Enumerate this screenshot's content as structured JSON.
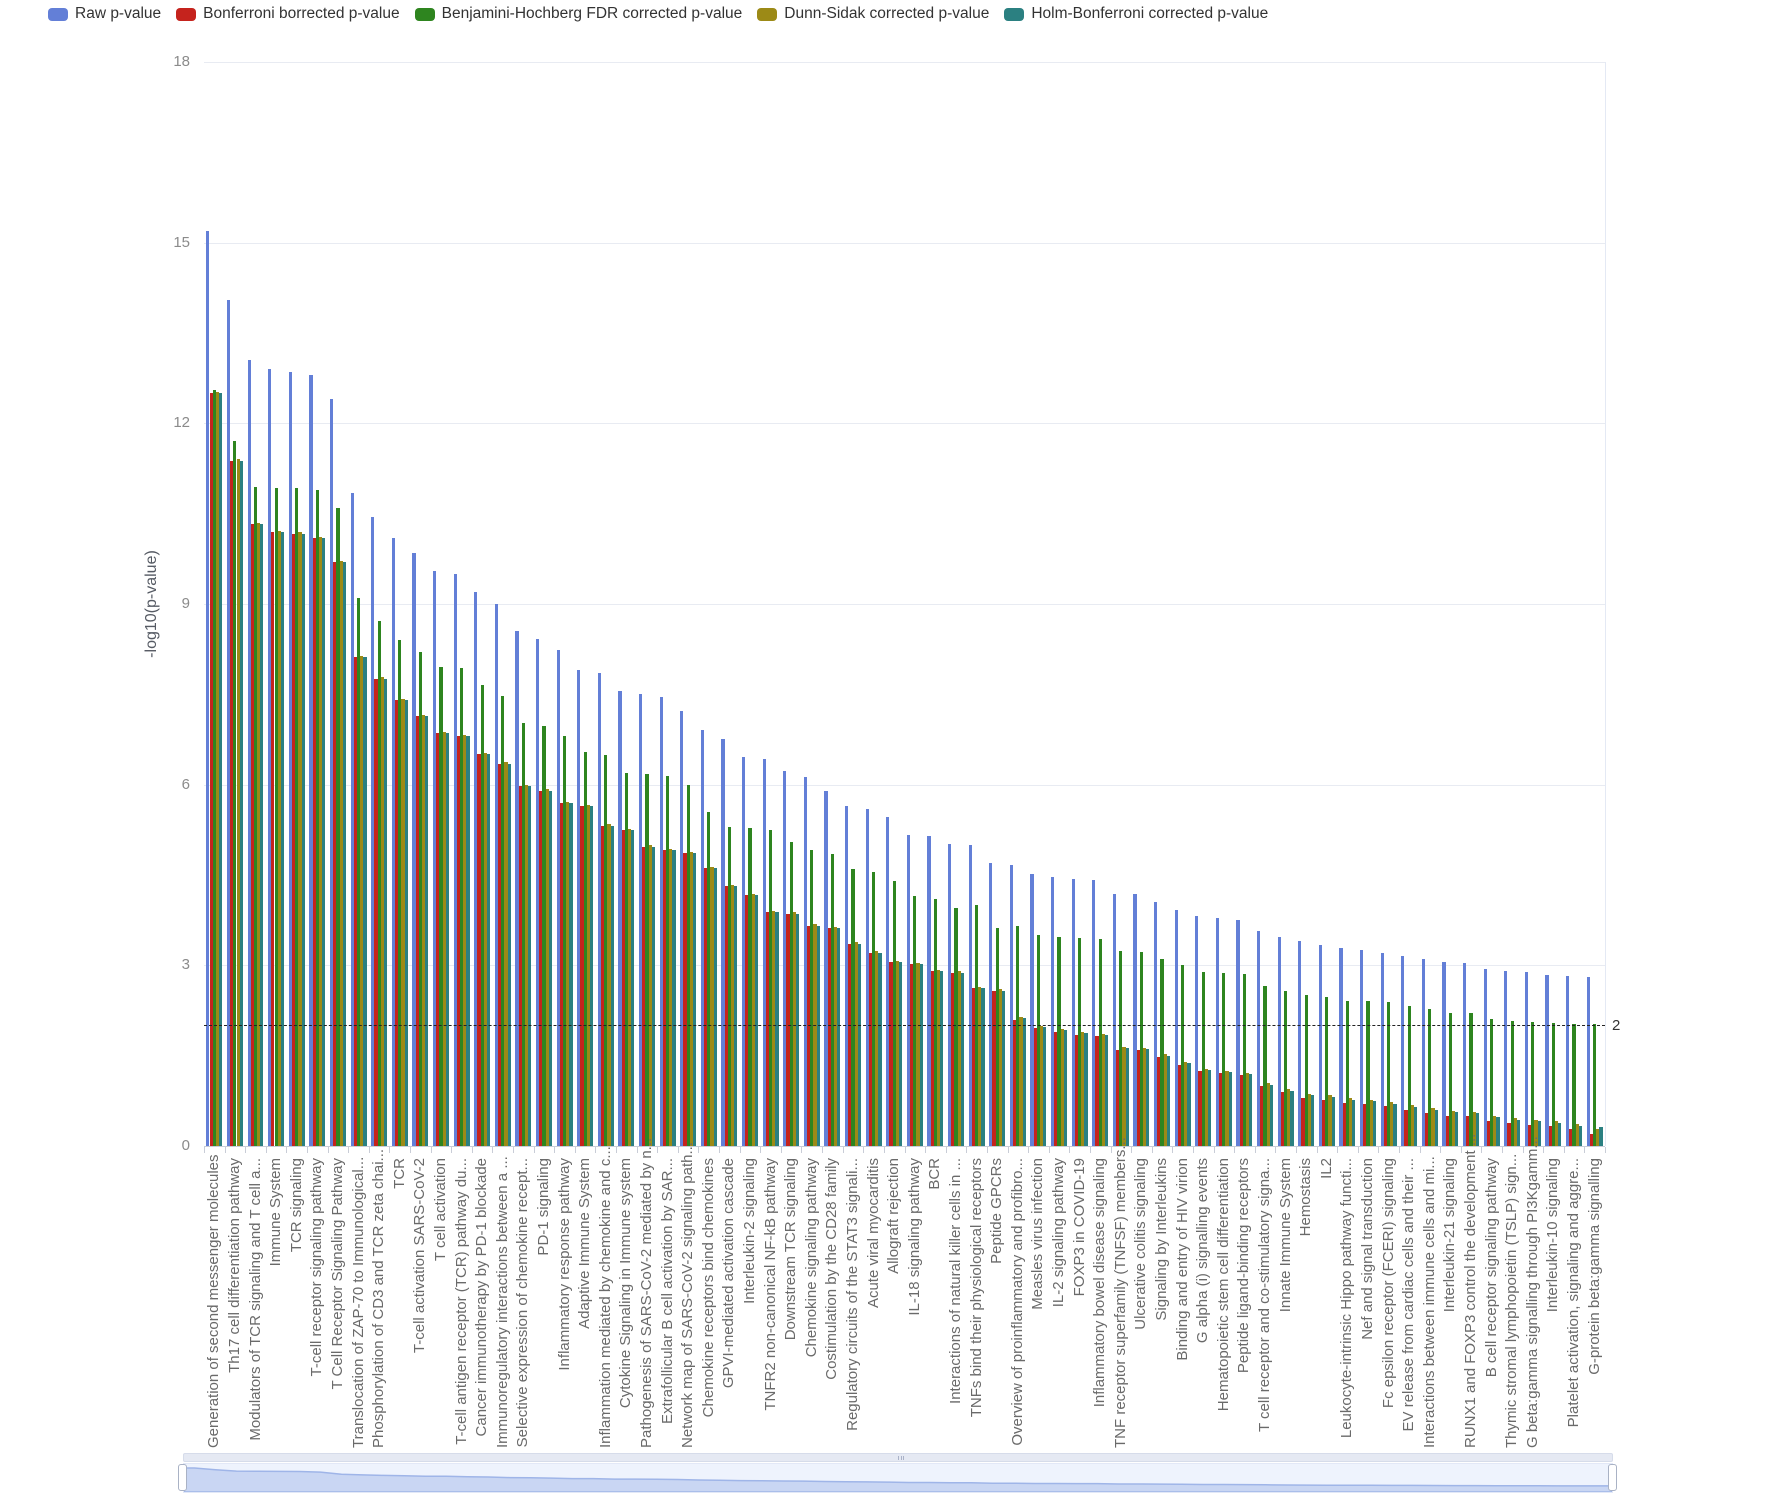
{
  "y_axis": {
    "title": "-log10(p-value)",
    "ticks": [
      0,
      3,
      6,
      9,
      12,
      15,
      18
    ],
    "max": 18
  },
  "threshold": {
    "value": 2,
    "label": "2"
  },
  "chart_data": {
    "type": "bar",
    "title": "",
    "xlabel": "",
    "ylabel": "-log10(p-value)",
    "ylim": [
      0,
      18
    ],
    "grid": true,
    "legend_position": "top",
    "threshold_line": 2,
    "categories": [
      "Generation of second messenger molecules",
      "Th17 cell differentiation pathway",
      "Modulators of TCR signaling and T cell a...",
      "Immune System",
      "TCR signaling",
      "T-cell receptor signaling pathway",
      "T Cell Receptor Signaling Pathway",
      "Translocation of ZAP-70 to Immunological...",
      "Phosphorylation of CD3 and TCR zeta chai...",
      "TCR",
      "T-cell activation SARS-CoV-2",
      "T cell activation",
      "T-cell antigen receptor (TCR) pathway du...",
      "Cancer immunotherapy by PD-1 blockade",
      "Immunoregulatory interactions between a ...",
      "Selective expression of chemokine recept...",
      "PD-1 signaling",
      "Inflammatory response pathway",
      "Adaptive Immune System",
      "Inflammation mediated by chemokine and c...",
      "Cytokine Signaling in Immune system",
      "Pathogenesis of SARS-CoV-2 mediated by n...",
      "Extrafollicular B cell activation by SAR...",
      "Network map of SARS-CoV-2 signaling path...",
      "Chemokine receptors bind chemokines",
      "GPVI-mediated activation cascade",
      "Interleukin-2 signaling",
      "TNFR2 non-canonical NF-kB pathway",
      "Downstream TCR signaling",
      "Chemokine signaling pathway",
      "Costimulation by the CD28 family",
      "Regulatory circuits of the STAT3 signali...",
      "Acute viral myocarditis",
      "Allograft rejection",
      "IL-18 signaling pathway",
      "BCR",
      "Interactions of natural killer cells in ...",
      "TNFs bind their physiological receptors",
      "Peptide GPCRs",
      "Overview of proinflammatory and profibro...",
      "Measles virus infection",
      "IL-2 signaling pathway",
      "FOXP3 in COVID-19",
      "Inflammatory bowel disease signaling",
      "TNF receptor superfamily (TNFSF) members...",
      "Ulcerative colitis signaling",
      "Signaling by Interleukins",
      "Binding and entry of HIV virion",
      "G alpha (i) signalling events",
      "Hematopoietic stem cell differentiation",
      "Peptide ligand-binding receptors",
      "T cell receptor and co-stimulatory signa...",
      "Innate Immune System",
      "Hemostasis",
      "IL2",
      "Leukocyte-intrinsic Hippo pathway functi...",
      "Nef and signal transduction",
      "Fc epsilon receptor (FCERI) signaling",
      "EV release from cardiac cells and their ...",
      "Interactions between immune cells and mi...",
      "Interleukin-21 signaling",
      "RUNX1 and FOXP3 control the development ...",
      "B cell receptor signaling pathway",
      "Thymic stromal lymphopoietin (TSLP) sign...",
      "G beta:gamma signalling through PI3Kgamm...",
      "Interleukin-10 signaling",
      "Platelet activation, signaling and aggre...",
      "G-protein beta:gamma signalling"
    ],
    "series": [
      {
        "name": "Raw p-value",
        "color": "#637fd7",
        "values": [
          15.2,
          14.05,
          13.05,
          12.9,
          12.85,
          12.8,
          12.4,
          10.85,
          10.45,
          10.1,
          9.85,
          9.55,
          9.5,
          9.2,
          9.0,
          8.55,
          8.42,
          8.23,
          7.91,
          7.86,
          7.56,
          7.5,
          7.45,
          7.22,
          6.9,
          6.76,
          6.46,
          6.43,
          6.23,
          6.13,
          5.9,
          5.65,
          5.6,
          5.46,
          5.16,
          5.15,
          5.02,
          5.0,
          4.7,
          4.67,
          4.52,
          4.47,
          4.43,
          4.41,
          4.18,
          4.18,
          4.05,
          3.92,
          3.82,
          3.78,
          3.76,
          3.57,
          3.47,
          3.4,
          3.33,
          3.28,
          3.25,
          3.2,
          3.15,
          3.1,
          3.06,
          3.04,
          2.94,
          2.91,
          2.89,
          2.84,
          2.82,
          2.8
        ]
      },
      {
        "name": "Bonferroni borrected p-value",
        "color": "#c5231d",
        "values": [
          12.5,
          11.38,
          10.33,
          10.2,
          10.17,
          10.1,
          9.7,
          8.12,
          7.76,
          7.4,
          7.14,
          6.85,
          6.81,
          6.51,
          6.35,
          5.98,
          5.9,
          5.7,
          5.64,
          5.32,
          5.25,
          4.97,
          4.91,
          4.87,
          4.62,
          4.31,
          4.17,
          3.88,
          3.86,
          3.66,
          3.62,
          3.36,
          3.21,
          3.05,
          3.02,
          2.9,
          2.88,
          2.62,
          2.58,
          2.09,
          1.96,
          1.9,
          1.85,
          1.82,
          1.6,
          1.59,
          1.48,
          1.35,
          1.24,
          1.21,
          1.18,
          0.99,
          0.89,
          0.8,
          0.77,
          0.72,
          0.7,
          0.66,
          0.6,
          0.55,
          0.5,
          0.5,
          0.42,
          0.38,
          0.35,
          0.33,
          0.28,
          0.2
        ]
      },
      {
        "name": "Benjamini-Hochberg FDR corrected p-value",
        "color": "#2e851f",
        "values": [
          12.55,
          11.7,
          10.95,
          10.93,
          10.92,
          10.9,
          10.6,
          9.1,
          8.72,
          8.4,
          8.2,
          7.95,
          7.93,
          7.65,
          7.48,
          7.02,
          6.97,
          6.8,
          6.55,
          6.5,
          6.2,
          6.18,
          6.15,
          6.0,
          5.55,
          5.3,
          5.28,
          5.25,
          5.05,
          4.92,
          4.85,
          4.6,
          4.55,
          4.4,
          4.15,
          4.1,
          3.95,
          4.0,
          3.62,
          3.65,
          3.51,
          3.47,
          3.45,
          3.43,
          3.23,
          3.22,
          3.11,
          3.0,
          2.89,
          2.87,
          2.85,
          2.65,
          2.57,
          2.5,
          2.48,
          2.41,
          2.4,
          2.39,
          2.33,
          2.28,
          2.21,
          2.21,
          2.11,
          2.08,
          2.06,
          2.04,
          2.03,
          2.03
        ]
      },
      {
        "name": "Dunn-Sidak corrected p-value",
        "color": "#9c8a16",
        "values": [
          12.52,
          11.4,
          10.35,
          10.22,
          10.19,
          10.12,
          9.72,
          8.14,
          7.78,
          7.42,
          7.16,
          6.87,
          6.83,
          6.53,
          6.37,
          6.0,
          5.92,
          5.72,
          5.66,
          5.34,
          5.27,
          4.99,
          4.93,
          4.89,
          4.64,
          4.33,
          4.19,
          3.9,
          3.88,
          3.68,
          3.64,
          3.38,
          3.23,
          3.07,
          3.04,
          2.92,
          2.9,
          2.64,
          2.6,
          2.15,
          2.0,
          1.94,
          1.89,
          1.86,
          1.64,
          1.63,
          1.52,
          1.39,
          1.28,
          1.25,
          1.22,
          1.05,
          0.95,
          0.87,
          0.84,
          0.79,
          0.77,
          0.73,
          0.68,
          0.63,
          0.58,
          0.57,
          0.5,
          0.46,
          0.43,
          0.41,
          0.36,
          0.28
        ]
      },
      {
        "name": "Holm-Bonferroni corrected p-value",
        "color": "#2b8081",
        "values": [
          12.5,
          11.38,
          10.33,
          10.2,
          10.17,
          10.1,
          9.7,
          8.12,
          7.76,
          7.4,
          7.14,
          6.85,
          6.81,
          6.51,
          6.35,
          5.98,
          5.9,
          5.7,
          5.64,
          5.32,
          5.25,
          4.97,
          4.91,
          4.87,
          4.62,
          4.31,
          4.17,
          3.88,
          3.86,
          3.66,
          3.62,
          3.36,
          3.21,
          3.05,
          3.02,
          2.9,
          2.88,
          2.62,
          2.58,
          2.12,
          1.98,
          1.92,
          1.87,
          1.84,
          1.62,
          1.61,
          1.5,
          1.37,
          1.26,
          1.23,
          1.2,
          1.02,
          0.92,
          0.84,
          0.81,
          0.76,
          0.74,
          0.7,
          0.65,
          0.6,
          0.56,
          0.55,
          0.48,
          0.44,
          0.41,
          0.39,
          0.34,
          0.31
        ]
      }
    ]
  }
}
